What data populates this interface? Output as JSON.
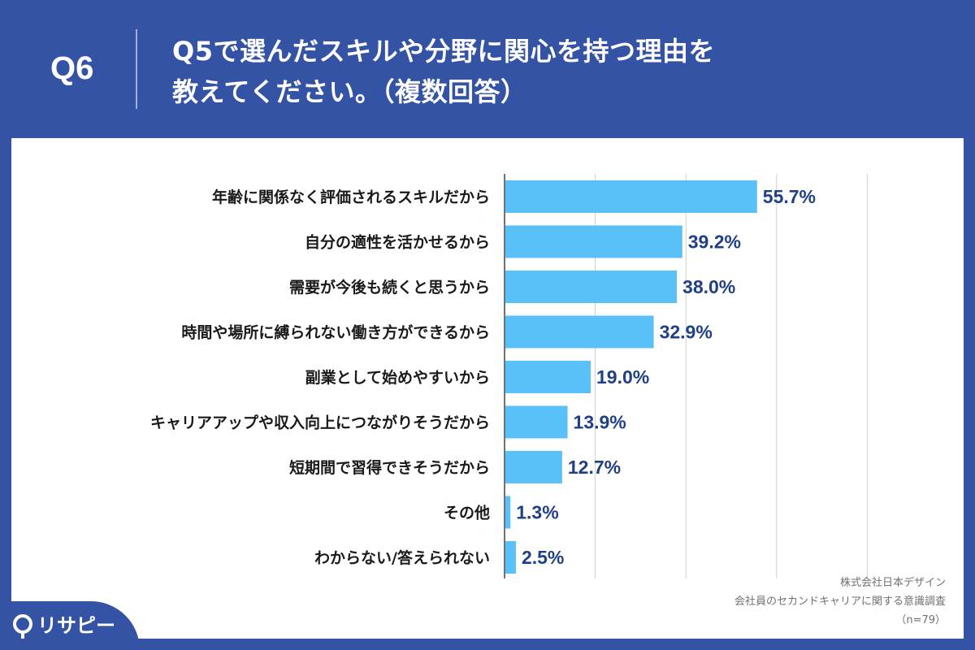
{
  "header": {
    "question_no": "Q6",
    "title_line1": "Q5で選んだスキルや分野に関心を持つ理由を",
    "title_line2": "教えてください。（複数回答）"
  },
  "brand": {
    "logo_text": "リサピー"
  },
  "source": {
    "company": "株式会社日本デザイン",
    "survey": "会社員のセカンドキャリアに関する意識調査",
    "sample": "（n=79）"
  },
  "colors": {
    "background": "#3553a5",
    "bar": "#5ac0f8",
    "value_text": "#1f3f86",
    "grid": "#d0d0d0"
  },
  "chart_data": {
    "type": "bar",
    "orientation": "horizontal",
    "categories": [
      "年齢に関係なく評価されるスキルだから",
      "自分の適性を活かせるから",
      "需要が今後も続くと思うから",
      "時間や場所に縛られない働き方ができるから",
      "副業として始めやすいから",
      "キャリアアップや収入向上につながりそうだから",
      "短期間で習得できそうだから",
      "その他",
      "わからない/答えられない"
    ],
    "values": [
      55.7,
      39.2,
      38.0,
      32.9,
      19.0,
      13.9,
      12.7,
      1.3,
      2.5
    ],
    "value_labels": [
      "55.7%",
      "39.2%",
      "38.0%",
      "32.9%",
      "19.0%",
      "13.9%",
      "12.7%",
      "1.3%",
      "2.5%"
    ],
    "xlim": [
      0,
      100
    ],
    "grid": true
  }
}
